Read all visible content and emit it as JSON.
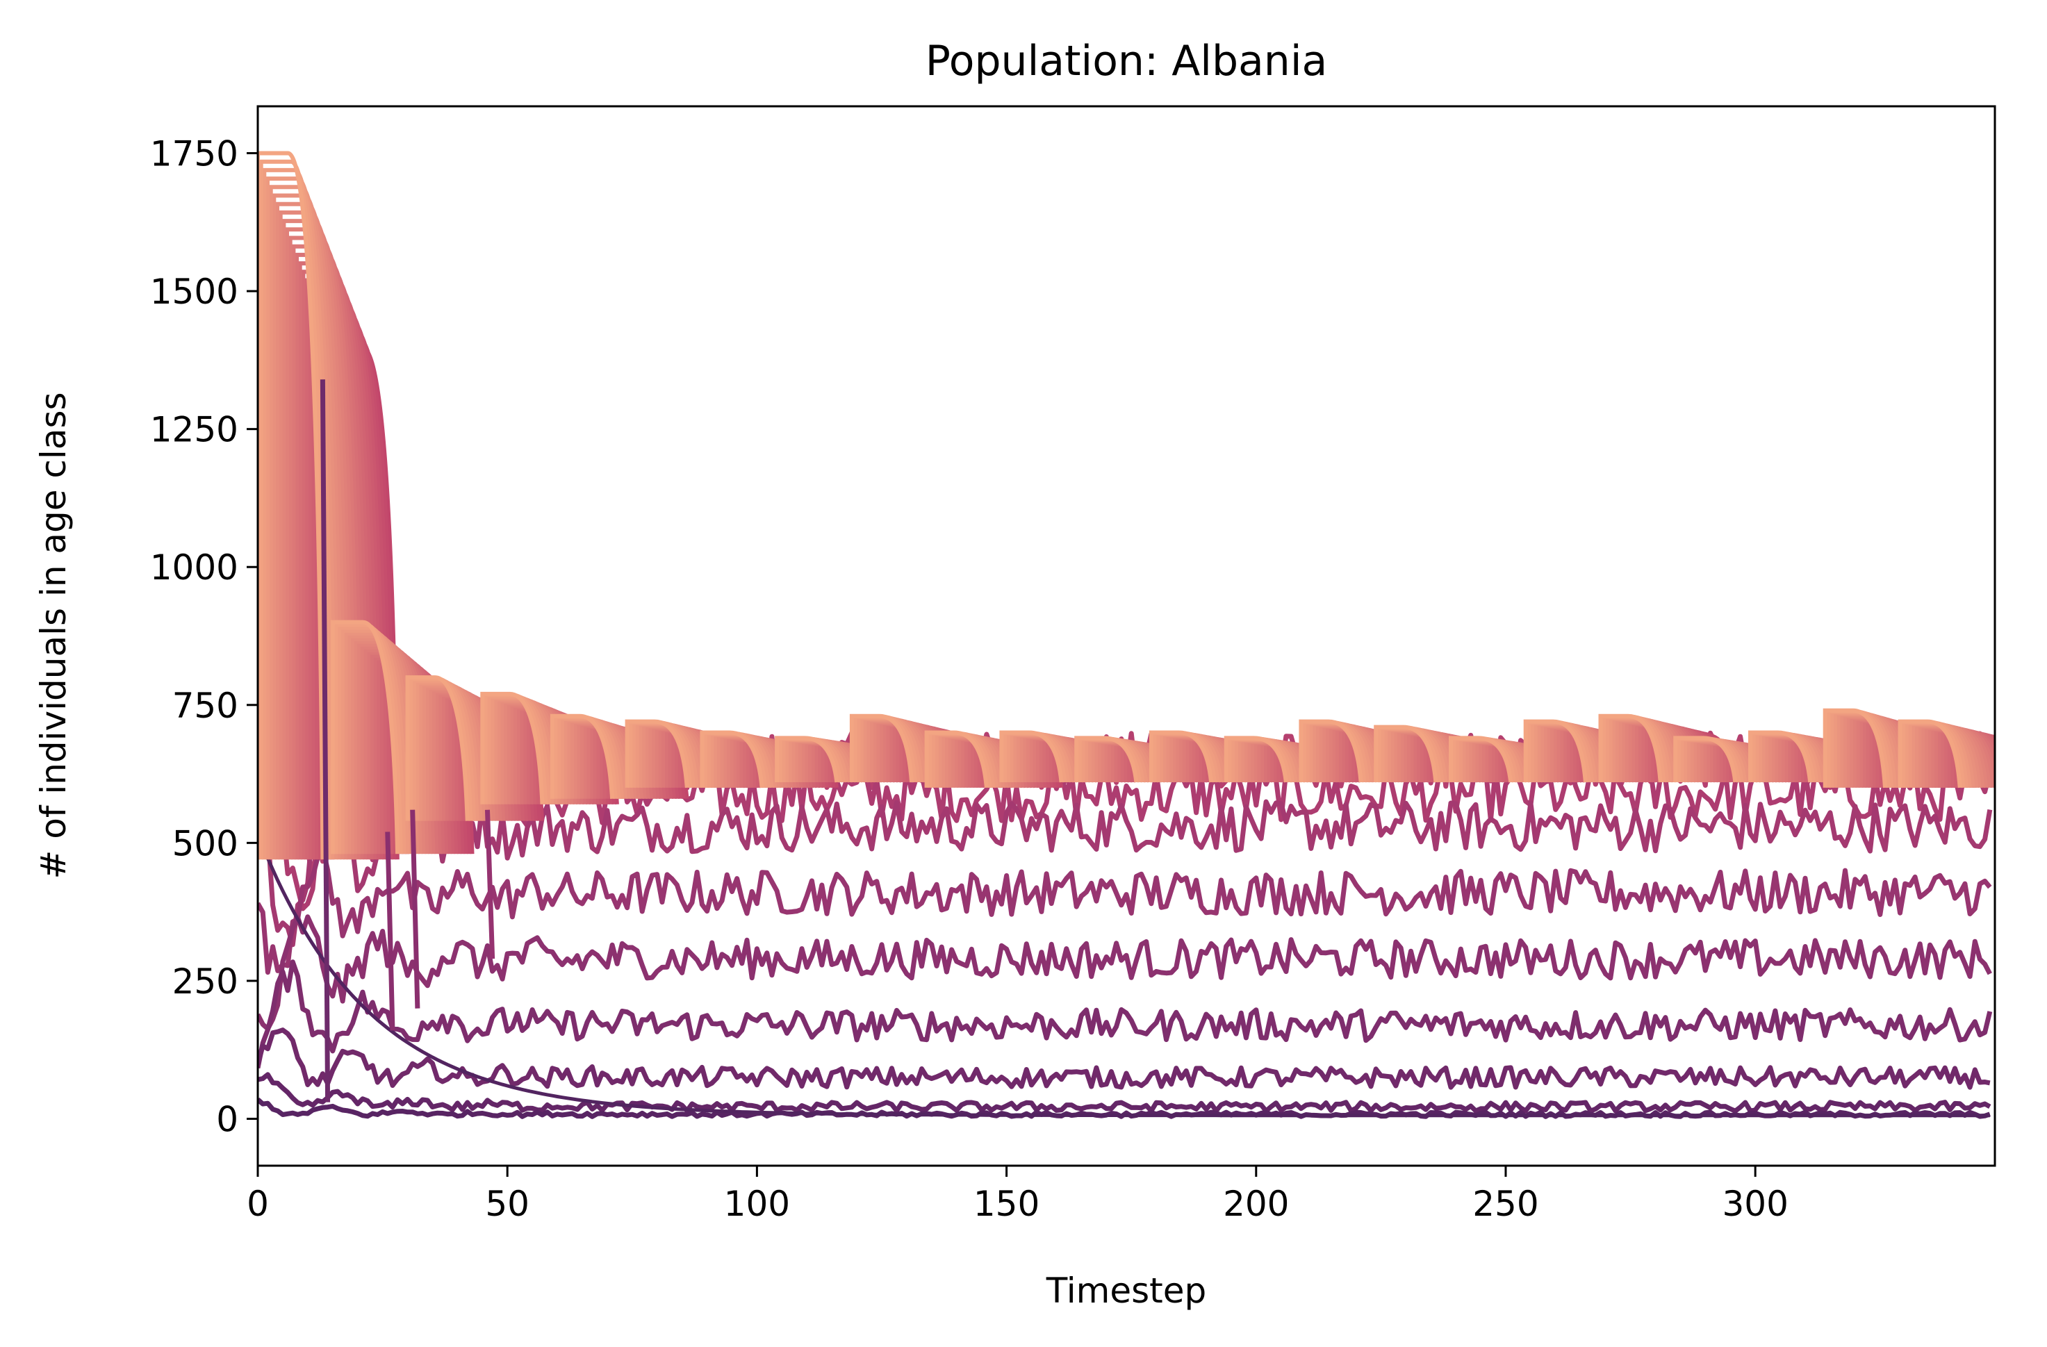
{
  "chart_data": {
    "type": "line",
    "title": "Population: Albania",
    "xlabel": "Timestep",
    "ylabel": "# of individuals in age class",
    "xlim": [
      0,
      348
    ],
    "ylim": [
      -85,
      1835
    ],
    "xticks": [
      0,
      50,
      100,
      150,
      200,
      250,
      300
    ],
    "yticks": [
      0,
      250,
      500,
      750,
      1000,
      1250,
      1500,
      1750
    ],
    "grid": false,
    "legend": "none",
    "colormap": "flare",
    "n_steps": 348,
    "envelope": {
      "color_start": "#f3a582",
      "color_end": "#c2466b",
      "n_classes": 24,
      "class_offset_steps": 0.65,
      "segments": [
        {
          "start": 0,
          "length": 11,
          "high": 1750,
          "low": 470
        },
        {
          "start": 15,
          "length": 11,
          "high": 900,
          "low": 480
        },
        {
          "start": 30,
          "length": 10,
          "high": 800,
          "low": 540
        },
        {
          "start": 45,
          "length": 10,
          "high": 770,
          "low": 570
        },
        {
          "start": 59,
          "length": 10,
          "high": 730,
          "low": 580
        },
        {
          "start": 74,
          "length": 10,
          "high": 720,
          "low": 600
        },
        {
          "start": 89,
          "length": 10,
          "high": 700,
          "low": 600
        },
        {
          "start": 104,
          "length": 10,
          "high": 690,
          "low": 610
        },
        {
          "start": 119,
          "length": 10,
          "high": 730,
          "low": 610
        },
        {
          "start": 134,
          "length": 10,
          "high": 700,
          "low": 600
        },
        {
          "start": 149,
          "length": 10,
          "high": 700,
          "low": 610
        },
        {
          "start": 164,
          "length": 10,
          "high": 690,
          "low": 610
        },
        {
          "start": 179,
          "length": 10,
          "high": 700,
          "low": 610
        },
        {
          "start": 194,
          "length": 10,
          "high": 690,
          "low": 610
        },
        {
          "start": 209,
          "length": 10,
          "high": 720,
          "low": 610
        },
        {
          "start": 224,
          "length": 10,
          "high": 710,
          "low": 610
        },
        {
          "start": 239,
          "length": 10,
          "high": 690,
          "low": 610
        },
        {
          "start": 254,
          "length": 10,
          "high": 720,
          "low": 610
        },
        {
          "start": 269,
          "length": 10,
          "high": 730,
          "low": 610
        },
        {
          "start": 284,
          "length": 10,
          "high": 690,
          "low": 610
        },
        {
          "start": 299,
          "length": 10,
          "high": 700,
          "low": 610
        },
        {
          "start": 314,
          "length": 10,
          "high": 740,
          "low": 600
        },
        {
          "start": 329,
          "length": 10,
          "high": 720,
          "low": 600
        }
      ]
    },
    "series": [
      {
        "level": 650,
        "start": 470,
        "noise": 50,
        "color": "#b5406f"
      },
      {
        "level": 590,
        "start": 460,
        "noise": 50,
        "color": "#ad3c70"
      },
      {
        "level": 530,
        "start": 430,
        "noise": 45,
        "color": "#a43970"
      },
      {
        "level": 410,
        "start": 380,
        "noise": 40,
        "color": "#983570"
      },
      {
        "level": 290,
        "start": 270,
        "noise": 35,
        "color": "#8c316f"
      },
      {
        "level": 170,
        "start": 200,
        "noise": 28,
        "color": "#7e2d6d"
      },
      {
        "level": 75,
        "start": 120,
        "noise": 18,
        "color": "#71296a"
      },
      {
        "level": 22,
        "start": 50,
        "noise": 8,
        "color": "#642667"
      },
      {
        "level": 8,
        "start": 20,
        "noise": 4,
        "color": "#582463"
      }
    ],
    "decay_series": {
      "start": 510,
      "rate": 0.045,
      "color": "#522460"
    },
    "spikes": [
      {
        "x": 13,
        "from": 1340,
        "to": 30,
        "color": "#6e2b6b"
      },
      {
        "x": 26,
        "from": 520,
        "to": 160,
        "color": "#8a2f6e"
      },
      {
        "x": 31,
        "from": 560,
        "to": 200,
        "color": "#8a2f6e"
      },
      {
        "x": 46,
        "from": 560,
        "to": 290,
        "color": "#963370"
      }
    ]
  }
}
